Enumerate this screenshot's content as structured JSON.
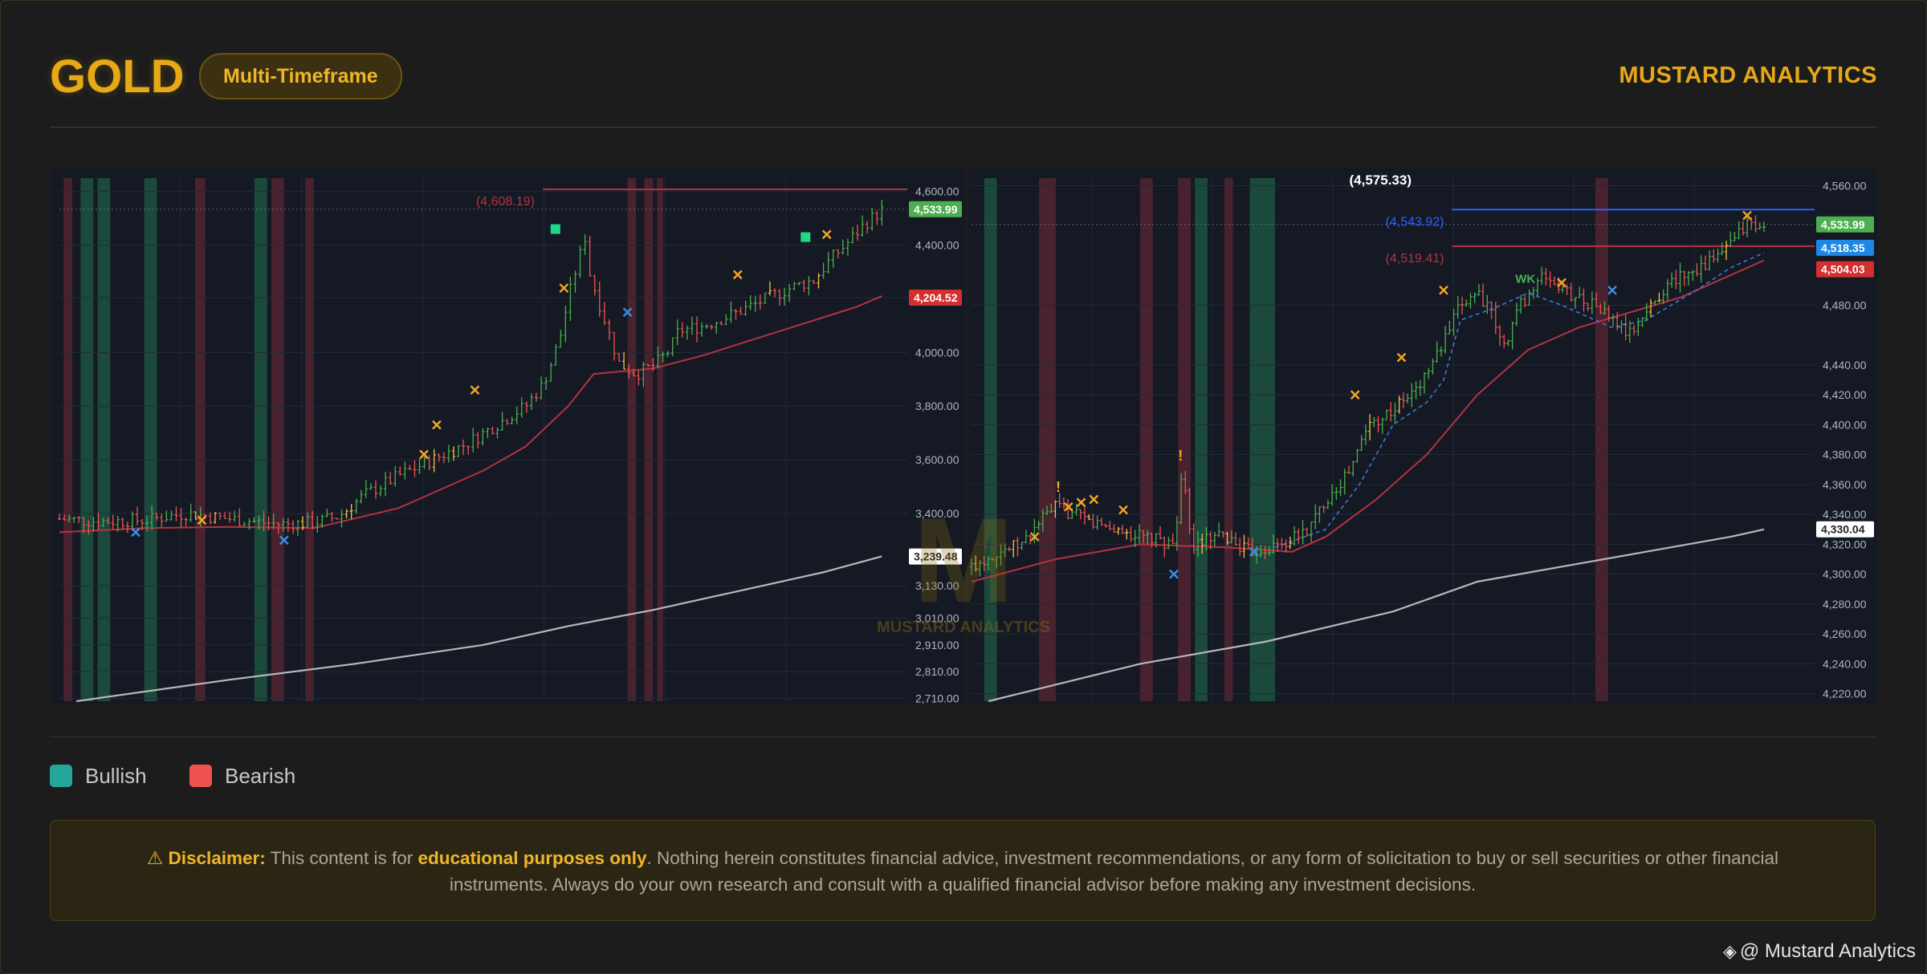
{
  "header": {
    "title": "GOLD",
    "badge": "Multi-Timeframe",
    "brand": "MUSTARD ANALYTICS"
  },
  "watermark": {
    "text": "MUSTARD ANALYTICS",
    "mark": "M"
  },
  "legend": [
    {
      "label": "Bullish",
      "color": "#26a69a"
    },
    {
      "label": "Bearish",
      "color": "#ef5350"
    }
  ],
  "disclaimer": {
    "icon": "warning-icon",
    "icon_glyph": "⚠",
    "label": "Disclaimer:",
    "text_before": " This content is for ",
    "emphasis": "educational purposes only",
    "text_after": ". Nothing herein constitutes financial advice, investment recommendations, or any form of solicitation to buy or sell securities or other financial instruments. Always do your own research and consult with a qualified financial advisor before making any investment decisions."
  },
  "footer": {
    "icon": "binance-square-icon",
    "icon_glyph": "◈",
    "text": "@ Mustard Analytics"
  },
  "colors": {
    "accent": "#e7a915",
    "chart_bg": "#151924",
    "bull": "#4caf50",
    "bear": "#ef5350",
    "ma_red": "#b2333f",
    "ma_gray": "#b8b8b8",
    "green_zone": "#1e5a44",
    "red_zone": "#5a2632",
    "x_orange": "#f5a623",
    "x_blue": "#3b8eea",
    "blue_level": "#2962ff"
  },
  "chart_data": [
    {
      "type": "candlestick",
      "timeframe": "",
      "ylim": [
        2700,
        4650
      ],
      "yticks": [
        2710,
        2810,
        2910,
        3010,
        3130,
        3400,
        3600,
        3800,
        4000,
        4204.52,
        4400,
        4600
      ],
      "ytick_labels": [
        "2,710.00",
        "2,810.00",
        "2,910.00",
        "3,010.00",
        "3,130.00",
        "3,400.00",
        "3,600.00",
        "3,800.00",
        "4,000.00",
        "",
        "4,400.00",
        "4,600.00"
      ],
      "price_tags": [
        {
          "value": 4533.99,
          "label": "4,533.99",
          "color": "#4caf50"
        },
        {
          "value": 4204.52,
          "label": "4,204.52",
          "color": "#d32f2f"
        },
        {
          "value": 3239.48,
          "label": "3,239.48",
          "color": "#e0e0e0"
        }
      ],
      "levels": [
        {
          "value": 4608.19,
          "label": "(4,608.19)",
          "color": "#b2333f",
          "from": 0.57
        }
      ],
      "current_price_dotted": 4533.99,
      "trend": [
        [
          0,
          3380
        ],
        [
          0.05,
          3370
        ],
        [
          0.1,
          3375
        ],
        [
          0.15,
          3400
        ],
        [
          0.2,
          3380
        ],
        [
          0.26,
          3360
        ],
        [
          0.3,
          3365
        ],
        [
          0.33,
          3390
        ],
        [
          0.36,
          3470
        ],
        [
          0.4,
          3540
        ],
        [
          0.44,
          3600
        ],
        [
          0.48,
          3660
        ],
        [
          0.5,
          3700
        ],
        [
          0.53,
          3760
        ],
        [
          0.55,
          3800
        ],
        [
          0.57,
          3880
        ],
        [
          0.58,
          3960
        ],
        [
          0.59,
          4050
        ],
        [
          0.6,
          4200
        ],
        [
          0.61,
          4320
        ],
        [
          0.62,
          4430
        ],
        [
          0.625,
          4300
        ],
        [
          0.64,
          4150
        ],
        [
          0.66,
          3960
        ],
        [
          0.68,
          3920
        ],
        [
          0.7,
          3950
        ],
        [
          0.72,
          4010
        ],
        [
          0.73,
          4080
        ],
        [
          0.76,
          4100
        ],
        [
          0.8,
          4150
        ],
        [
          0.84,
          4210
        ],
        [
          0.87,
          4250
        ],
        [
          0.89,
          4270
        ],
        [
          0.91,
          4350
        ],
        [
          0.93,
          4410
        ],
        [
          0.95,
          4480
        ],
        [
          0.97,
          4530
        ]
      ],
      "ma_short": [
        [
          0,
          3330
        ],
        [
          0.1,
          3345
        ],
        [
          0.2,
          3350
        ],
        [
          0.3,
          3345
        ],
        [
          0.4,
          3420
        ],
        [
          0.5,
          3560
        ],
        [
          0.55,
          3650
        ],
        [
          0.6,
          3800
        ],
        [
          0.63,
          3920
        ],
        [
          0.7,
          3940
        ],
        [
          0.76,
          3990
        ],
        [
          0.82,
          4050
        ],
        [
          0.88,
          4110
        ],
        [
          0.94,
          4170
        ],
        [
          0.97,
          4210
        ]
      ],
      "ma_long": [
        [
          0.02,
          2700
        ],
        [
          0.2,
          2780
        ],
        [
          0.35,
          2840
        ],
        [
          0.5,
          2910
        ],
        [
          0.6,
          2980
        ],
        [
          0.7,
          3040
        ],
        [
          0.8,
          3110
        ],
        [
          0.9,
          3180
        ],
        [
          0.97,
          3240
        ]
      ],
      "zones": [
        {
          "from": 0.005,
          "to": 0.015,
          "type": "red"
        },
        {
          "from": 0.025,
          "to": 0.04,
          "type": "green"
        },
        {
          "from": 0.045,
          "to": 0.06,
          "type": "green"
        },
        {
          "from": 0.1,
          "to": 0.115,
          "type": "green"
        },
        {
          "from": 0.16,
          "to": 0.172,
          "type": "red"
        },
        {
          "from": 0.23,
          "to": 0.245,
          "type": "green"
        },
        {
          "from": 0.25,
          "to": 0.265,
          "type": "red"
        },
        {
          "from": 0.29,
          "to": 0.3,
          "type": "red"
        },
        {
          "from": 0.67,
          "to": 0.68,
          "type": "red"
        },
        {
          "from": 0.69,
          "to": 0.7,
          "type": "red"
        },
        {
          "from": 0.705,
          "to": 0.712,
          "type": "red"
        }
      ],
      "markers": [
        {
          "x": 0.09,
          "y": 3330,
          "shape": "x",
          "color": "blue"
        },
        {
          "x": 0.168,
          "y": 3375,
          "shape": "x",
          "color": "orange"
        },
        {
          "x": 0.265,
          "y": 3300,
          "shape": "x",
          "color": "blue"
        },
        {
          "x": 0.43,
          "y": 3620,
          "shape": "x",
          "color": "orange"
        },
        {
          "x": 0.445,
          "y": 3730,
          "shape": "x",
          "color": "orange"
        },
        {
          "x": 0.49,
          "y": 3860,
          "shape": "x",
          "color": "orange"
        },
        {
          "x": 0.585,
          "y": 4460,
          "shape": "square",
          "color": "green"
        },
        {
          "x": 0.595,
          "y": 4240,
          "shape": "x",
          "color": "orange"
        },
        {
          "x": 0.67,
          "y": 4150,
          "shape": "x",
          "color": "blue"
        },
        {
          "x": 0.8,
          "y": 4290,
          "shape": "x",
          "color": "orange"
        },
        {
          "x": 0.88,
          "y": 4430,
          "shape": "square",
          "color": "green"
        },
        {
          "x": 0.905,
          "y": 4440,
          "shape": "x",
          "color": "orange"
        }
      ]
    },
    {
      "type": "candlestick",
      "timeframe": "",
      "ylim": [
        4215,
        4565
      ],
      "yticks": [
        4220,
        4240,
        4260,
        4280,
        4300,
        4320,
        4340,
        4360,
        4380,
        4400,
        4420,
        4440,
        4480,
        4560
      ],
      "ytick_labels": [
        "4,220.00",
        "4,240.00",
        "4,260.00",
        "4,280.00",
        "4,300.00",
        "4,320.00",
        "4,340.00",
        "4,360.00",
        "4,380.00",
        "4,400.00",
        "4,420.00",
        "4,440.00",
        "4,480.00",
        "4,560.00"
      ],
      "price_tags": [
        {
          "value": 4533.99,
          "label": "4,533.99",
          "color": "#4caf50"
        },
        {
          "value": 4518.35,
          "label": "4,518.35",
          "color": "#1e88e5"
        },
        {
          "value": 4504.03,
          "label": "4,504.03",
          "color": "#d32f2f"
        },
        {
          "value": 4330.04,
          "label": "4,330.04",
          "color": "#e0e0e0"
        }
      ],
      "levels": [
        {
          "value": 4575.33,
          "label": "(4,575.33)",
          "color": "#ffffff",
          "from": 1.0,
          "label_only": true
        },
        {
          "value": 4543.92,
          "label": "(4,543.92)",
          "color": "#2962ff",
          "from": 0.57
        },
        {
          "value": 4519.41,
          "label": "(4,519.41)",
          "color": "#b2333f",
          "from": 0.57
        }
      ],
      "current_price_dotted": 4533.99,
      "text_labels": [
        {
          "x": 0.645,
          "y": 4495,
          "text": "WK",
          "color": "#4caf50"
        }
      ],
      "trend": [
        [
          0,
          4305
        ],
        [
          0.03,
          4315
        ],
        [
          0.06,
          4320
        ],
        [
          0.08,
          4335
        ],
        [
          0.1,
          4345
        ],
        [
          0.14,
          4335
        ],
        [
          0.17,
          4330
        ],
        [
          0.2,
          4325
        ],
        [
          0.24,
          4320
        ],
        [
          0.25,
          4370
        ],
        [
          0.26,
          4320
        ],
        [
          0.3,
          4325
        ],
        [
          0.33,
          4315
        ],
        [
          0.37,
          4320
        ],
        [
          0.4,
          4330
        ],
        [
          0.42,
          4350
        ],
        [
          0.45,
          4370
        ],
        [
          0.47,
          4400
        ],
        [
          0.5,
          4410
        ],
        [
          0.53,
          4425
        ],
        [
          0.56,
          4455
        ],
        [
          0.58,
          4480
        ],
        [
          0.6,
          4490
        ],
        [
          0.62,
          4470
        ],
        [
          0.63,
          4450
        ],
        [
          0.65,
          4480
        ],
        [
          0.68,
          4500
        ],
        [
          0.7,
          4490
        ],
        [
          0.72,
          4485
        ],
        [
          0.74,
          4480
        ],
        [
          0.76,
          4470
        ],
        [
          0.78,
          4460
        ],
        [
          0.8,
          4475
        ],
        [
          0.82,
          4490
        ],
        [
          0.84,
          4500
        ],
        [
          0.86,
          4505
        ],
        [
          0.88,
          4510
        ],
        [
          0.9,
          4520
        ],
        [
          0.92,
          4535
        ],
        [
          0.94,
          4530
        ]
      ],
      "ma_short": [
        [
          0,
          4295
        ],
        [
          0.1,
          4310
        ],
        [
          0.2,
          4320
        ],
        [
          0.3,
          4318
        ],
        [
          0.38,
          4315
        ],
        [
          0.42,
          4325
        ],
        [
          0.48,
          4350
        ],
        [
          0.54,
          4380
        ],
        [
          0.6,
          4420
        ],
        [
          0.66,
          4450
        ],
        [
          0.72,
          4465
        ],
        [
          0.78,
          4475
        ],
        [
          0.84,
          4485
        ],
        [
          0.9,
          4500
        ],
        [
          0.94,
          4510
        ]
      ],
      "ma_long": [
        [
          0.02,
          4215
        ],
        [
          0.2,
          4240
        ],
        [
          0.35,
          4255
        ],
        [
          0.5,
          4275
        ],
        [
          0.6,
          4295
        ],
        [
          0.7,
          4305
        ],
        [
          0.8,
          4315
        ],
        [
          0.9,
          4325
        ],
        [
          0.94,
          4330
        ]
      ],
      "zones": [
        {
          "from": 0.015,
          "to": 0.03,
          "type": "green"
        },
        {
          "from": 0.08,
          "to": 0.1,
          "type": "red"
        },
        {
          "from": 0.2,
          "to": 0.215,
          "type": "red"
        },
        {
          "from": 0.245,
          "to": 0.26,
          "type": "red"
        },
        {
          "from": 0.265,
          "to": 0.28,
          "type": "green"
        },
        {
          "from": 0.3,
          "to": 0.31,
          "type": "red"
        },
        {
          "from": 0.33,
          "to": 0.35,
          "type": "green"
        },
        {
          "from": 0.35,
          "to": 0.36,
          "type": "green"
        },
        {
          "from": 0.74,
          "to": 0.755,
          "type": "red"
        }
      ],
      "markers": [
        {
          "x": 0.075,
          "y": 4325,
          "shape": "x",
          "color": "orange"
        },
        {
          "x": 0.115,
          "y": 4345,
          "shape": "x",
          "color": "orange"
        },
        {
          "x": 0.13,
          "y": 4348,
          "shape": "x",
          "color": "orange"
        },
        {
          "x": 0.145,
          "y": 4350,
          "shape": "x",
          "color": "orange"
        },
        {
          "x": 0.18,
          "y": 4343,
          "shape": "x",
          "color": "orange"
        },
        {
          "x": 0.24,
          "y": 4300,
          "shape": "x",
          "color": "blue"
        },
        {
          "x": 0.335,
          "y": 4315,
          "shape": "x",
          "color": "blue"
        },
        {
          "x": 0.455,
          "y": 4420,
          "shape": "x",
          "color": "orange"
        },
        {
          "x": 0.51,
          "y": 4445,
          "shape": "x",
          "color": "orange"
        },
        {
          "x": 0.56,
          "y": 4490,
          "shape": "x",
          "color": "orange"
        },
        {
          "x": 0.7,
          "y": 4495,
          "shape": "x",
          "color": "orange"
        },
        {
          "x": 0.76,
          "y": 4490,
          "shape": "x",
          "color": "blue"
        },
        {
          "x": 0.92,
          "y": 4540,
          "shape": "x",
          "color": "orange"
        }
      ]
    }
  ]
}
